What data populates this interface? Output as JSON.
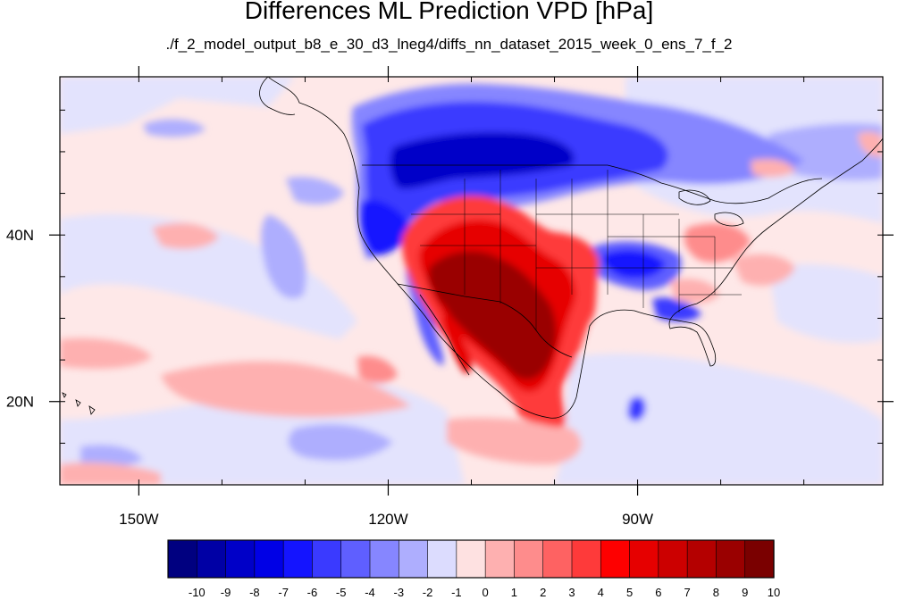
{
  "title": "Differences ML Prediction VPD [hPa]",
  "subtitle": "./f_2_model_output_b8_e_30_d3_lneg4/diffs_nn_dataset_2015_week_0_ens_7_f_2",
  "map": {
    "lon_range": [
      -159.5,
      -60.5
    ],
    "lat_range": [
      10,
      59
    ],
    "x_ticks": [
      {
        "lon": -150,
        "label": "150W"
      },
      {
        "lon": -120,
        "label": "120W"
      },
      {
        "lon": -90,
        "label": "90W"
      }
    ],
    "y_ticks": [
      {
        "lat": 20,
        "label": "20N"
      },
      {
        "lat": 40,
        "label": "40N"
      }
    ]
  },
  "colorbar": {
    "colors": [
      "#000080",
      "#0000a5",
      "#0000c8",
      "#0000e6",
      "#1414ff",
      "#3a3aff",
      "#5f5fff",
      "#8686ff",
      "#aeaefe",
      "#dcdcfe",
      "#fee1e1",
      "#feb0b0",
      "#fe8c8c",
      "#fe6262",
      "#fe3a3a",
      "#fe0000",
      "#e60000",
      "#cc0000",
      "#b40000",
      "#9a0000",
      "#7a0000"
    ],
    "labels": [
      "-10",
      "-9",
      "-8",
      "-7",
      "-6",
      "-5",
      "-4",
      "-3",
      "-2",
      "-1",
      "0",
      "1",
      "2",
      "3",
      "4",
      "5",
      "6",
      "7",
      "8",
      "9",
      "10"
    ]
  }
}
